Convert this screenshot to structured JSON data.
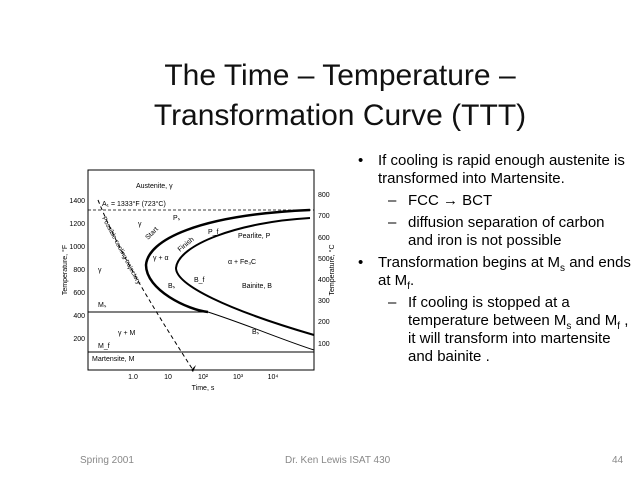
{
  "slide": {
    "title_line1": "The Time – Temperature –",
    "title_line2": "Transformation Curve   (TTT)"
  },
  "diagram": {
    "y_left_label": "Temperature, °F",
    "y_right_label": "Temperature, °C",
    "x_label": "Time, s",
    "y_left_ticks": [
      "1400",
      "1200",
      "1000",
      "800",
      "600",
      "400",
      "200"
    ],
    "y_right_ticks": [
      "800",
      "700",
      "600",
      "500",
      "400",
      "300",
      "200",
      "100"
    ],
    "x_ticks": [
      "1.0",
      "10",
      "10²",
      "10³",
      "10⁴"
    ],
    "regions": {
      "austenite": "Austenite, γ",
      "a1": "A₁ = 1333°F (723°C)",
      "gamma1": "γ",
      "gamma2": "γ",
      "gamma_alpha": "γ + α",
      "alpha_fe3c": "α + Fe₃C",
      "pearlite": "Pearlite, P",
      "bainite": "Bainite, B",
      "gamma_m": "γ + M",
      "martensite": "Martensite, M",
      "ms": "Mₛ",
      "mf": "M_f",
      "ps": "Pₛ",
      "pf": "P_f",
      "bs": "Bₛ",
      "bf": "B_f",
      "bs2": "Bₛ",
      "start": "Start",
      "finish": "Finish",
      "cooling": "Possible cooling trajectory"
    }
  },
  "bullets": {
    "b1": "If cooling is rapid enough austenite is transformed into Martensite.",
    "b1_sub1": "FCC → BCT",
    "b1_sub2": "diffusion separation of carbon and iron is not possible",
    "b2_prefix": "Transformation begins at M",
    "b2_s": "s",
    "b2_mid": " and ends at M",
    "b2_f": "f",
    "b2_end": ".",
    "b2_sub1_a": "If cooling is stopped at a temperature between M",
    "b2_sub1_s": "s",
    "b2_sub1_b": " and M",
    "b2_sub1_f": "f",
    "b2_sub1_c": " , it will transform into martensite and bainite ."
  },
  "footer": {
    "left": "Spring 2001",
    "middle": "Dr. Ken Lewis    ISAT 430",
    "right": "44"
  }
}
